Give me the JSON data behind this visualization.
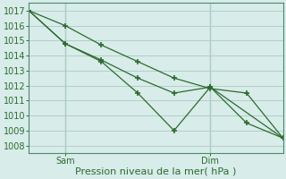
{
  "background_color": "#d8ecea",
  "grid_color": "#b2ceca",
  "line_color": "#2d6b2d",
  "ylim": [
    1007.5,
    1017.5
  ],
  "yticks": [
    1008,
    1009,
    1010,
    1011,
    1012,
    1013,
    1014,
    1015,
    1016,
    1017
  ],
  "xlim": [
    0,
    28
  ],
  "sam_x": 4,
  "dim_x": 20,
  "sam_label": "Sam",
  "dim_label": "Dim",
  "line1_x": [
    0,
    4,
    8,
    12,
    16,
    20,
    24,
    28
  ],
  "line1_y": [
    1017.0,
    1016.0,
    1014.7,
    1013.6,
    1012.5,
    1011.8,
    1011.5,
    1008.5
  ],
  "line2_x": [
    0,
    4,
    8,
    12,
    16,
    20,
    24,
    28
  ],
  "line2_y": [
    1017.0,
    1014.8,
    1013.7,
    1012.5,
    1011.5,
    1011.9,
    1009.5,
    1008.5
  ],
  "line3_x": [
    0,
    4,
    8,
    12,
    16,
    20,
    28
  ],
  "line3_y": [
    1017.0,
    1014.8,
    1013.6,
    1011.5,
    1009.0,
    1011.9,
    1008.5
  ],
  "xlabel": "Pression niveau de la mer( hPa )",
  "xlabel_fontsize": 8,
  "tick_fontsize": 7,
  "vline_color": "#7aaa99",
  "spine_color": "#4a8a6a"
}
